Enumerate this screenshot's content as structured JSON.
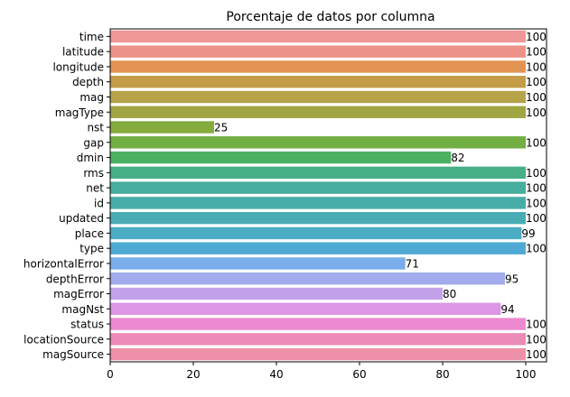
{
  "chart_data": {
    "type": "bar",
    "orientation": "horizontal",
    "title": "Porcentaje de datos por columna",
    "xlabel": "",
    "ylabel": "",
    "xlim": [
      0,
      105
    ],
    "xticks": [
      0,
      20,
      40,
      60,
      80,
      100
    ],
    "grid": false,
    "categories": [
      "time",
      "latitude",
      "longitude",
      "depth",
      "mag",
      "magType",
      "nst",
      "gap",
      "dmin",
      "rms",
      "net",
      "id",
      "updated",
      "place",
      "type",
      "horizontalError",
      "depthError",
      "magError",
      "magNst",
      "status",
      "locationSource",
      "magSource"
    ],
    "values": [
      100,
      100,
      100,
      100,
      100,
      100,
      25,
      100,
      82,
      100,
      100,
      100,
      100,
      99,
      100,
      71,
      95,
      80,
      94,
      100,
      100,
      100
    ],
    "colors": [
      "#ef9698",
      "#ed9288",
      "#e39352",
      "#c59d49",
      "#b6a34a",
      "#a1a542",
      "#84ab3d",
      "#72ae43",
      "#4cb062",
      "#48af87",
      "#47ad9c",
      "#48ada7",
      "#49acb4",
      "#4cacc5",
      "#4ea9d3",
      "#79adeb",
      "#a2abeb",
      "#c3a2ea",
      "#dd95e6",
      "#ec89d0",
      "#ec8ab8",
      "#ee91a8"
    ]
  }
}
